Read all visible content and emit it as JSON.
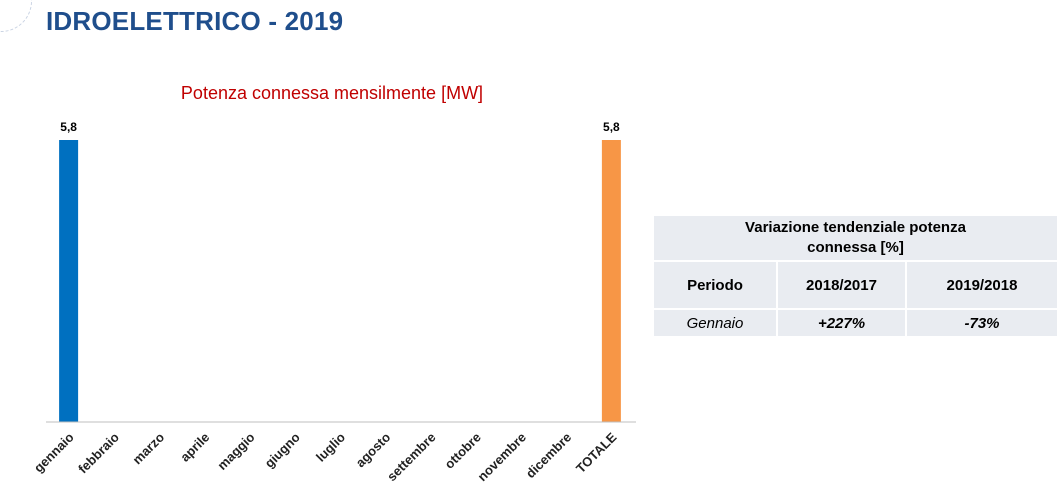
{
  "page": {
    "title": "IDROELETTRICO - 2019"
  },
  "chart_data": {
    "type": "bar",
    "title": "Potenza connessa mensilmente [MW]",
    "categories": [
      "gennaio",
      "febbraio",
      "marzo",
      "aprile",
      "maggio",
      "giugno",
      "luglio",
      "agosto",
      "settembre",
      "ottobre",
      "novembre",
      "dicembre",
      "TOTALE"
    ],
    "values": [
      5.8,
      null,
      null,
      null,
      null,
      null,
      null,
      null,
      null,
      null,
      null,
      null,
      5.8
    ],
    "value_labels": [
      "5,8",
      "",
      "",
      "",
      "",
      "",
      "",
      "",
      "",
      "",
      "",
      "",
      "5,8"
    ],
    "colors": [
      "#0070c0",
      "#0070c0",
      "#0070c0",
      "#0070c0",
      "#0070c0",
      "#0070c0",
      "#0070c0",
      "#0070c0",
      "#0070c0",
      "#0070c0",
      "#0070c0",
      "#0070c0",
      "#f79646"
    ],
    "xlabel": "",
    "ylabel": "",
    "ylim": [
      0,
      5.8
    ],
    "grid": false,
    "legend": "none"
  },
  "table": {
    "title": "Variazione tendenziale potenza connessa [%]",
    "columns": [
      "Periodo",
      "2018/2017",
      "2019/2018"
    ],
    "rows": [
      {
        "periodo": "Gennaio",
        "v2018_2017": "+227%",
        "v2019_2018": "-73%"
      }
    ],
    "positive_color": "#00a64a",
    "negative_color": "#e00000"
  }
}
